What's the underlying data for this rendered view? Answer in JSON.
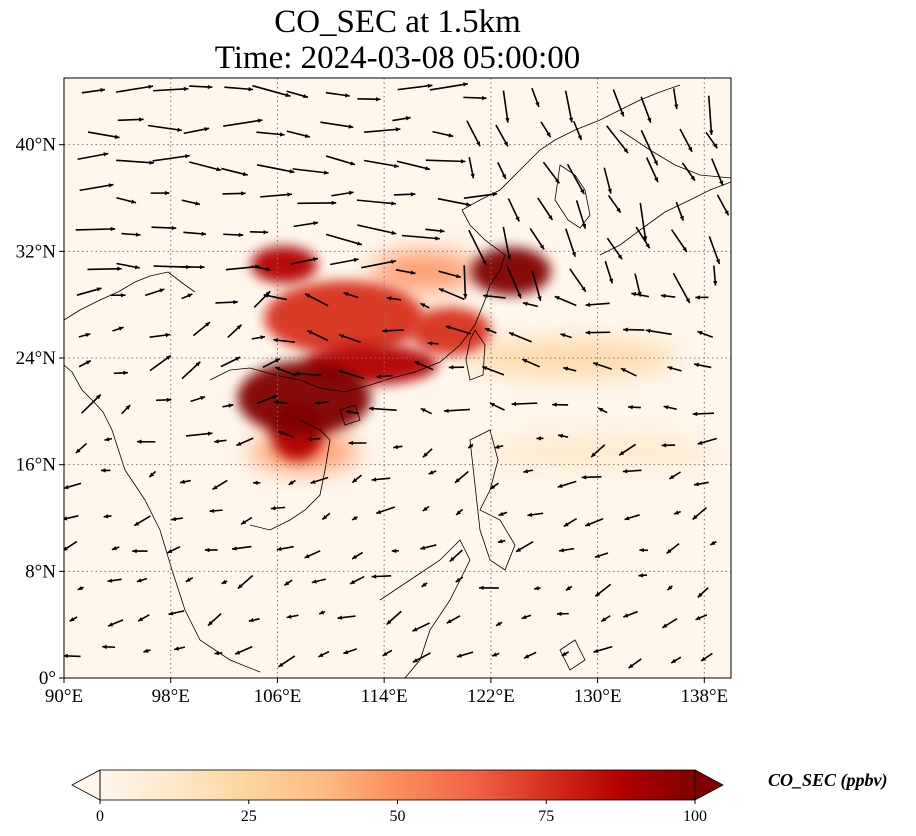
{
  "title": {
    "line1": "CO_SEC at 1.5km",
    "line2": "Time: 2024-03-08 05:00:00"
  },
  "map": {
    "projection": "PlateCarree",
    "lon_range": [
      90,
      140
    ],
    "lat_range": [
      0,
      45
    ],
    "x_ticks": [
      {
        "value": 90,
        "label": "90°E"
      },
      {
        "value": 98,
        "label": "98°E"
      },
      {
        "value": 106,
        "label": "106°E"
      },
      {
        "value": 114,
        "label": "114°E"
      },
      {
        "value": 122,
        "label": "122°E"
      },
      {
        "value": 130,
        "label": "130°E"
      },
      {
        "value": 138,
        "label": "138°E"
      }
    ],
    "y_ticks": [
      {
        "value": 0,
        "label": "0°"
      },
      {
        "value": 8,
        "label": "8°N"
      },
      {
        "value": 16,
        "label": "16°N"
      },
      {
        "value": 24,
        "label": "24°N"
      },
      {
        "value": 32,
        "label": "32°N"
      },
      {
        "value": 40,
        "label": "40°N"
      }
    ],
    "gridlines": "dotted",
    "coastlines": true,
    "wind_vectors": true
  },
  "colorbar": {
    "label": "CO_SEC (ppbv)",
    "colormap": "OrRd",
    "range": [
      0,
      100
    ],
    "extend": "both",
    "ticks": [
      {
        "value": 0,
        "label": "0"
      },
      {
        "value": 25,
        "label": "25"
      },
      {
        "value": 50,
        "label": "50"
      },
      {
        "value": 75,
        "label": "75"
      },
      {
        "value": 100,
        "label": "100"
      }
    ],
    "colors": [
      "#fff7ec",
      "#fee8c8",
      "#fdd49e",
      "#fdbb84",
      "#fc8d59",
      "#ef6548",
      "#d7301f",
      "#b30000",
      "#7f0000"
    ]
  },
  "plume_regions": [
    {
      "lon": 108,
      "lat": 21,
      "rlon": 5,
      "rlat": 2.8,
      "value": 98
    },
    {
      "lon": 107.5,
      "lat": 18.5,
      "rlon": 2,
      "rlat": 2.2,
      "value": 92
    },
    {
      "lon": 113,
      "lat": 23.5,
      "rlon": 5,
      "rlat": 1.5,
      "value": 88
    },
    {
      "lon": 119,
      "lat": 26,
      "rlon": 3,
      "rlat": 1.8,
      "value": 75
    },
    {
      "lon": 123.5,
      "lat": 30.5,
      "rlon": 3,
      "rlat": 1.8,
      "value": 98
    },
    {
      "lon": 106.5,
      "lat": 31,
      "rlon": 2.5,
      "rlat": 1.4,
      "value": 92
    },
    {
      "lon": 111,
      "lat": 27,
      "rlon": 6,
      "rlat": 2.8,
      "value": 70
    },
    {
      "lon": 117,
      "lat": 30.5,
      "rlon": 4,
      "rlat": 1.5,
      "value": 55
    },
    {
      "lon": 128,
      "lat": 24,
      "rlon": 8,
      "rlat": 1.4,
      "value": 25
    },
    {
      "lon": 130,
      "lat": 17,
      "rlon": 9,
      "rlat": 1.3,
      "value": 15
    },
    {
      "lon": 108,
      "lat": 17,
      "rlon": 4,
      "rlat": 1.5,
      "value": 55
    }
  ]
}
